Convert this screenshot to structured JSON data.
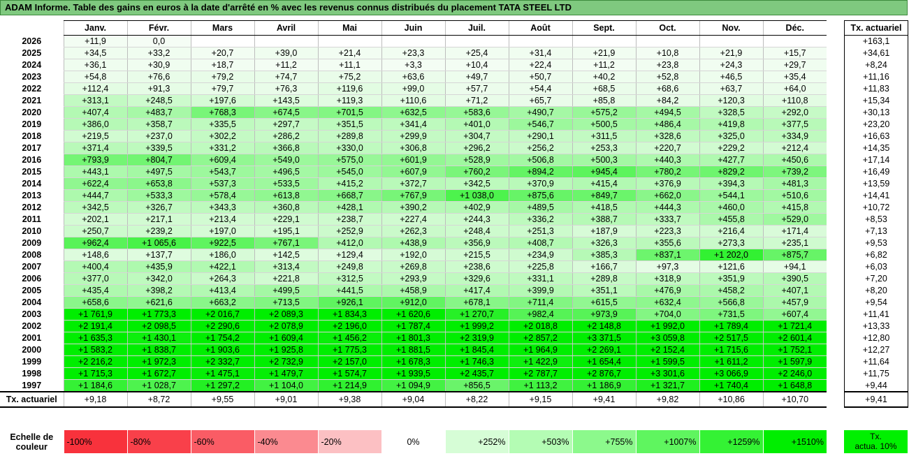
{
  "title": "ADAM Informe. Table des gains en euros à la date d'arrêté en % avec les revenus connus distribués du placement TATA STEEL LTD",
  "months": [
    "Janv.",
    "Févr.",
    "Mars",
    "Avril",
    "Mai",
    "Juin",
    "Juil.",
    "Août",
    "Sept.",
    "Oct.",
    "Nov.",
    "Déc."
  ],
  "rate_header": "Tx. actuariel",
  "rows": [
    {
      "year": "2026",
      "cells": [
        "+11,9",
        "0,0",
        "",
        "",
        "",
        "",
        "",
        "",
        "",
        "",
        "",
        ""
      ],
      "rate": "+163,1"
    },
    {
      "year": "2025",
      "cells": [
        "+34,5",
        "+33,2",
        "+20,7",
        "+39,0",
        "+21,4",
        "+23,3",
        "+25,4",
        "+31,4",
        "+21,9",
        "+10,8",
        "+21,9",
        "+15,7"
      ],
      "rate": "+34,61"
    },
    {
      "year": "2024",
      "cells": [
        "+36,1",
        "+30,9",
        "+18,7",
        "+11,2",
        "+11,1",
        "+3,3",
        "+10,4",
        "+22,4",
        "+11,2",
        "+23,8",
        "+24,3",
        "+29,7"
      ],
      "rate": "+8,24"
    },
    {
      "year": "2023",
      "cells": [
        "+54,8",
        "+76,6",
        "+79,2",
        "+74,7",
        "+75,2",
        "+63,6",
        "+49,7",
        "+50,7",
        "+40,2",
        "+52,8",
        "+46,5",
        "+35,4"
      ],
      "rate": "+11,16"
    },
    {
      "year": "2022",
      "cells": [
        "+112,4",
        "+91,3",
        "+79,7",
        "+76,3",
        "+119,6",
        "+99,0",
        "+57,7",
        "+54,4",
        "+68,5",
        "+68,6",
        "+63,7",
        "+64,0"
      ],
      "rate": "+11,83"
    },
    {
      "year": "2021",
      "cells": [
        "+313,1",
        "+248,5",
        "+197,6",
        "+143,5",
        "+119,3",
        "+110,6",
        "+71,2",
        "+65,7",
        "+85,8",
        "+84,2",
        "+120,3",
        "+110,8"
      ],
      "rate": "+15,34"
    },
    {
      "year": "2020",
      "cells": [
        "+407,4",
        "+483,7",
        "+768,3",
        "+674,5",
        "+701,5",
        "+632,5",
        "+583,6",
        "+490,7",
        "+575,2",
        "+494,5",
        "+328,5",
        "+292,0"
      ],
      "rate": "+30,13"
    },
    {
      "year": "2019",
      "cells": [
        "+386,0",
        "+358,7",
        "+335,5",
        "+297,7",
        "+351,5",
        "+341,4",
        "+401,0",
        "+546,7",
        "+500,5",
        "+486,4",
        "+419,8",
        "+377,5"
      ],
      "rate": "+23,20"
    },
    {
      "year": "2018",
      "cells": [
        "+219,5",
        "+237,0",
        "+302,2",
        "+286,2",
        "+289,8",
        "+299,9",
        "+304,7",
        "+290,1",
        "+311,5",
        "+328,6",
        "+325,0",
        "+334,9"
      ],
      "rate": "+16,63"
    },
    {
      "year": "2017",
      "cells": [
        "+371,4",
        "+339,5",
        "+331,2",
        "+366,8",
        "+330,0",
        "+306,8",
        "+296,2",
        "+256,2",
        "+253,3",
        "+220,7",
        "+229,2",
        "+212,4"
      ],
      "rate": "+14,35"
    },
    {
      "year": "2016",
      "cells": [
        "+793,9",
        "+804,7",
        "+609,4",
        "+549,0",
        "+575,0",
        "+601,9",
        "+528,9",
        "+506,8",
        "+500,3",
        "+440,3",
        "+427,7",
        "+450,6"
      ],
      "rate": "+17,14"
    },
    {
      "year": "2015",
      "cells": [
        "+443,1",
        "+497,5",
        "+543,7",
        "+496,5",
        "+545,0",
        "+607,9",
        "+760,2",
        "+894,2",
        "+945,4",
        "+780,2",
        "+829,2",
        "+739,2"
      ],
      "rate": "+16,49"
    },
    {
      "year": "2014",
      "cells": [
        "+622,4",
        "+653,8",
        "+537,3",
        "+533,5",
        "+415,2",
        "+372,7",
        "+342,5",
        "+370,9",
        "+415,4",
        "+376,9",
        "+394,3",
        "+481,3"
      ],
      "rate": "+13,59"
    },
    {
      "year": "2013",
      "cells": [
        "+444,7",
        "+533,3",
        "+578,4",
        "+613,8",
        "+668,7",
        "+767,9",
        "+1 038,0",
        "+875,6",
        "+849,7",
        "+662,0",
        "+544,1",
        "+510,6"
      ],
      "rate": "+14,41"
    },
    {
      "year": "2012",
      "cells": [
        "+342,5",
        "+326,7",
        "+343,3",
        "+360,8",
        "+428,1",
        "+390,2",
        "+402,9",
        "+489,5",
        "+418,5",
        "+444,3",
        "+460,0",
        "+415,8"
      ],
      "rate": "+10,72"
    },
    {
      "year": "2011",
      "cells": [
        "+202,1",
        "+217,1",
        "+213,4",
        "+229,1",
        "+238,7",
        "+227,4",
        "+244,3",
        "+336,2",
        "+388,7",
        "+333,7",
        "+455,8",
        "+529,0"
      ],
      "rate": "+8,53"
    },
    {
      "year": "2010",
      "cells": [
        "+250,7",
        "+239,2",
        "+197,0",
        "+195,1",
        "+252,9",
        "+262,3",
        "+248,4",
        "+251,3",
        "+187,9",
        "+223,3",
        "+216,4",
        "+171,4"
      ],
      "rate": "+7,13"
    },
    {
      "year": "2009",
      "cells": [
        "+962,4",
        "+1 065,6",
        "+922,5",
        "+767,1",
        "+412,0",
        "+438,9",
        "+356,9",
        "+408,7",
        "+326,3",
        "+355,6",
        "+273,3",
        "+235,1"
      ],
      "rate": "+9,53"
    },
    {
      "year": "2008",
      "cells": [
        "+148,6",
        "+137,7",
        "+186,0",
        "+142,5",
        "+129,4",
        "+192,0",
        "+215,5",
        "+234,9",
        "+385,3",
        "+837,1",
        "+1 202,0",
        "+875,7"
      ],
      "rate": "+6,82"
    },
    {
      "year": "2007",
      "cells": [
        "+400,4",
        "+435,9",
        "+422,1",
        "+313,4",
        "+249,8",
        "+269,8",
        "+238,6",
        "+225,8",
        "+166,7",
        "+97,3",
        "+121,6",
        "+94,1"
      ],
      "rate": "+6,03"
    },
    {
      "year": "2006",
      "cells": [
        "+377,0",
        "+342,0",
        "+264,3",
        "+221,8",
        "+312,5",
        "+293,9",
        "+329,6",
        "+331,1",
        "+289,8",
        "+318,9",
        "+351,9",
        "+390,5"
      ],
      "rate": "+7,20"
    },
    {
      "year": "2005",
      "cells": [
        "+435,4",
        "+398,2",
        "+413,4",
        "+499,5",
        "+441,5",
        "+458,9",
        "+417,4",
        "+399,9",
        "+351,1",
        "+476,9",
        "+458,2",
        "+407,1"
      ],
      "rate": "+8,20"
    },
    {
      "year": "2004",
      "cells": [
        "+658,6",
        "+621,6",
        "+663,2",
        "+713,5",
        "+926,1",
        "+912,0",
        "+678,1",
        "+711,4",
        "+615,5",
        "+632,4",
        "+566,8",
        "+457,9"
      ],
      "rate": "+9,54"
    },
    {
      "year": "2003",
      "cells": [
        "+1 761,9",
        "+1 773,3",
        "+2 016,7",
        "+2 089,3",
        "+1 834,3",
        "+1 620,6",
        "+1 270,7",
        "+982,4",
        "+973,9",
        "+704,0",
        "+731,5",
        "+607,4"
      ],
      "rate": "+11,41"
    },
    {
      "year": "2002",
      "cells": [
        "+2 191,4",
        "+2 098,5",
        "+2 290,6",
        "+2 078,9",
        "+2 196,0",
        "+1 787,4",
        "+1 999,2",
        "+2 018,8",
        "+2 148,8",
        "+1 992,0",
        "+1 789,4",
        "+1 721,4"
      ],
      "rate": "+13,33"
    },
    {
      "year": "2001",
      "cells": [
        "+1 635,3",
        "+1 430,1",
        "+1 754,2",
        "+1 609,4",
        "+1 456,2",
        "+1 801,3",
        "+2 319,9",
        "+2 857,2",
        "+3 371,5",
        "+3 059,8",
        "+2 517,5",
        "+2 601,4"
      ],
      "rate": "+12,80"
    },
    {
      "year": "2000",
      "cells": [
        "+1 583,2",
        "+1 838,7",
        "+1 903,6",
        "+1 925,8",
        "+1 775,3",
        "+1 881,5",
        "+1 845,4",
        "+1 964,9",
        "+2 269,1",
        "+2 152,4",
        "+1 715,6",
        "+1 752,1"
      ],
      "rate": "+12,27"
    },
    {
      "year": "1999",
      "cells": [
        "+2 216,2",
        "+1 972,3",
        "+2 332,7",
        "+2 732,9",
        "+2 157,0",
        "+1 678,3",
        "+1 746,3",
        "+1 422,9",
        "+1 654,4",
        "+1 599,5",
        "+1 611,2",
        "+1 597,9"
      ],
      "rate": "+11,64"
    },
    {
      "year": "1998",
      "cells": [
        "+1 715,3",
        "+1 672,7",
        "+1 475,1",
        "+1 479,7",
        "+1 574,7",
        "+1 939,5",
        "+2 435,7",
        "+2 787,7",
        "+2 876,7",
        "+3 301,6",
        "+3 066,9",
        "+2 246,0"
      ],
      "rate": "+11,75"
    },
    {
      "year": "1997",
      "cells": [
        "+1 184,6",
        "+1 028,7",
        "+1 297,2",
        "+1 104,0",
        "+1 214,9",
        "+1 094,9",
        "+856,5",
        "+1 113,2",
        "+1 186,9",
        "+1 321,7",
        "+1 740,4",
        "+1 648,8"
      ],
      "rate": "+9,44"
    }
  ],
  "footer": {
    "label": "Tx. actuariel",
    "cells": [
      "+9,18",
      "+8,72",
      "+9,55",
      "+9,01",
      "+9,38",
      "+9,04",
      "+8,22",
      "+9,15",
      "+9,41",
      "+9,82",
      "+10,86",
      "+10,70"
    ],
    "rate": "+9,41"
  },
  "legend": {
    "label": "Echelle de couleur",
    "steps": [
      {
        "text": "-100%",
        "color": "#f8323c",
        "align": "left"
      },
      {
        "text": "-80%",
        "color": "#f9404a",
        "align": "left"
      },
      {
        "text": "-60%",
        "color": "#fa5c65",
        "align": "left"
      },
      {
        "text": "-40%",
        "color": "#fb8a90",
        "align": "left"
      },
      {
        "text": "-20%",
        "color": "#fcc0c3",
        "align": "left"
      },
      {
        "text": "0%",
        "color": "#ffffff",
        "align": "center"
      },
      {
        "text": "+252%",
        "color": "#d6fdd6",
        "align": "right"
      },
      {
        "text": "+503%",
        "color": "#b4fcb4",
        "align": "right"
      },
      {
        "text": "+755%",
        "color": "#8cf98c",
        "align": "right"
      },
      {
        "text": "+1007%",
        "color": "#5ff55f",
        "align": "right"
      },
      {
        "text": "+1259%",
        "color": "#34f234",
        "align": "right"
      },
      {
        "text": "+1510%",
        "color": "#00ee00",
        "align": "right"
      }
    ],
    "rate_label_1": "Tx.",
    "rate_label_2": "actua. 10%",
    "rate_color": "#00f000"
  }
}
